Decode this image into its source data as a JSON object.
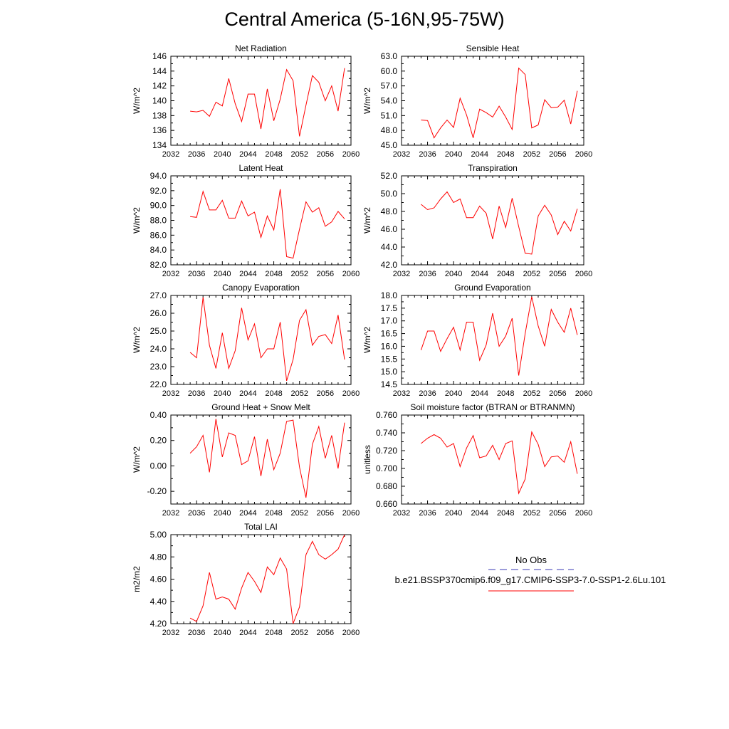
{
  "page": {
    "title": "Central America (5-16N,95-75W)"
  },
  "legend": {
    "obs_label": "No Obs",
    "run_label": "b.e21.BSSP370cmip6.f09_g17.CMIP6-SSP3-7.0-SSP1-2.6Lu.101",
    "colors": {
      "obs": "#3a3ab4",
      "run": "#ff0000"
    }
  },
  "chart_data": [
    {
      "type": "line",
      "title": "Net Radiation",
      "ylabel": "W/m^2",
      "xlim": [
        2032,
        2060
      ],
      "ylim": [
        134,
        146
      ],
      "xticks": [
        "2032",
        "2036",
        "2040",
        "2044",
        "2048",
        "2052",
        "2056",
        "2060"
      ],
      "yticks": [
        "134",
        "136",
        "138",
        "140",
        "142",
        "144",
        "146"
      ],
      "x": [
        2035,
        2036,
        2037,
        2038,
        2039,
        2040,
        2041,
        2042,
        2043,
        2044,
        2045,
        2046,
        2047,
        2048,
        2049,
        2050,
        2051,
        2052,
        2053,
        2054,
        2055,
        2056,
        2057,
        2058,
        2059
      ],
      "values": [
        138.6,
        138.5,
        138.7,
        137.9,
        139.8,
        139.3,
        143.0,
        139.6,
        137.2,
        140.9,
        140.9,
        136.2,
        141.6,
        137.3,
        140.2,
        144.2,
        142.7,
        135.2,
        139.4,
        143.4,
        142.5,
        140.0,
        142.0,
        138.6,
        144.4
      ],
      "series_color": "#ff0000",
      "grid": false
    },
    {
      "type": "line",
      "title": "Sensible Heat",
      "ylabel": "W/m^2",
      "xlim": [
        2032,
        2060
      ],
      "ylim": [
        45,
        63
      ],
      "xticks": [
        "2032",
        "2036",
        "2040",
        "2044",
        "2048",
        "2052",
        "2056",
        "2060"
      ],
      "yticks": [
        "45.0",
        "48.0",
        "51.0",
        "54.0",
        "57.0",
        "60.0",
        "63.0"
      ],
      "x": [
        2035,
        2036,
        2037,
        2038,
        2039,
        2040,
        2041,
        2042,
        2043,
        2044,
        2045,
        2046,
        2047,
        2048,
        2049,
        2050,
        2051,
        2052,
        2053,
        2054,
        2055,
        2056,
        2057,
        2058,
        2059
      ],
      "values": [
        50.1,
        50.0,
        46.5,
        48.5,
        50.1,
        48.6,
        54.5,
        51.1,
        46.5,
        52.3,
        51.6,
        50.7,
        52.9,
        50.7,
        48.2,
        60.6,
        59.3,
        48.5,
        49.1,
        54.2,
        52.6,
        52.7,
        54.1,
        49.3,
        56.0
      ],
      "series_color": "#ff0000",
      "grid": false
    },
    {
      "type": "line",
      "title": "Latent Heat",
      "ylabel": "W/m^2",
      "xlim": [
        2032,
        2060
      ],
      "ylim": [
        82,
        94
      ],
      "xticks": [
        "2032",
        "2036",
        "2040",
        "2044",
        "2048",
        "2052",
        "2056",
        "2060"
      ],
      "yticks": [
        "82.0",
        "84.0",
        "86.0",
        "88.0",
        "90.0",
        "92.0",
        "94.0"
      ],
      "x": [
        2035,
        2036,
        2037,
        2038,
        2039,
        2040,
        2041,
        2042,
        2043,
        2044,
        2045,
        2046,
        2047,
        2048,
        2049,
        2050,
        2051,
        2052,
        2053,
        2054,
        2055,
        2056,
        2057,
        2058,
        2059
      ],
      "values": [
        88.5,
        88.4,
        91.9,
        89.4,
        89.4,
        90.7,
        88.3,
        88.3,
        90.6,
        88.6,
        89.1,
        85.7,
        88.6,
        86.7,
        92.2,
        83.1,
        82.9,
        86.8,
        90.5,
        89.1,
        89.7,
        87.2,
        87.8,
        89.2,
        88.2
      ],
      "series_color": "#ff0000",
      "grid": false
    },
    {
      "type": "line",
      "title": "Transpiration",
      "ylabel": "W/m^2",
      "xlim": [
        2032,
        2060
      ],
      "ylim": [
        42,
        52
      ],
      "xticks": [
        "2032",
        "2036",
        "2040",
        "2044",
        "2048",
        "2052",
        "2056",
        "2060"
      ],
      "yticks": [
        "42.0",
        "44.0",
        "46.0",
        "48.0",
        "50.0",
        "52.0"
      ],
      "x": [
        2035,
        2036,
        2037,
        2038,
        2039,
        2040,
        2041,
        2042,
        2043,
        2044,
        2045,
        2046,
        2047,
        2048,
        2049,
        2050,
        2051,
        2052,
        2053,
        2054,
        2055,
        2056,
        2057,
        2058,
        2059
      ],
      "values": [
        48.8,
        48.2,
        48.4,
        49.4,
        50.2,
        49.0,
        49.4,
        47.3,
        47.3,
        48.6,
        47.8,
        44.9,
        48.6,
        46.2,
        49.5,
        46.3,
        43.3,
        43.2,
        47.5,
        48.7,
        47.6,
        45.4,
        46.9,
        45.8,
        48.3
      ],
      "series_color": "#ff0000",
      "grid": false
    },
    {
      "type": "line",
      "title": "Canopy Evaporation",
      "ylabel": "W/m^2",
      "xlim": [
        2032,
        2060
      ],
      "ylim": [
        22,
        27
      ],
      "xticks": [
        "2032",
        "2036",
        "2040",
        "2044",
        "2048",
        "2052",
        "2056",
        "2060"
      ],
      "yticks": [
        "22.0",
        "23.0",
        "24.0",
        "25.0",
        "26.0",
        "27.0"
      ],
      "x": [
        2035,
        2036,
        2037,
        2038,
        2039,
        2040,
        2041,
        2042,
        2043,
        2044,
        2045,
        2046,
        2047,
        2048,
        2049,
        2050,
        2051,
        2052,
        2053,
        2054,
        2055,
        2056,
        2057,
        2058,
        2059
      ],
      "values": [
        23.8,
        23.5,
        26.9,
        24.2,
        22.9,
        24.9,
        22.9,
        23.9,
        26.3,
        24.5,
        25.4,
        23.5,
        24.0,
        24.0,
        25.5,
        22.2,
        23.4,
        25.6,
        26.2,
        24.2,
        24.7,
        24.8,
        24.3,
        25.9,
        23.4
      ],
      "series_color": "#ff0000",
      "grid": false
    },
    {
      "type": "line",
      "title": "Ground Evaporation",
      "ylabel": "W/m^2",
      "xlim": [
        2032,
        2060
      ],
      "ylim": [
        14.5,
        18.0
      ],
      "xticks": [
        "2032",
        "2036",
        "2040",
        "2044",
        "2048",
        "2052",
        "2056",
        "2060"
      ],
      "yticks": [
        "14.5",
        "15.0",
        "15.5",
        "16.0",
        "16.5",
        "17.0",
        "17.5",
        "18.0"
      ],
      "x": [
        2035,
        2036,
        2037,
        2038,
        2039,
        2040,
        2041,
        2042,
        2043,
        2044,
        2045,
        2046,
        2047,
        2048,
        2049,
        2050,
        2051,
        2052,
        2053,
        2054,
        2055,
        2056,
        2057,
        2058,
        2059
      ],
      "values": [
        15.85,
        16.6,
        16.6,
        15.8,
        16.3,
        16.75,
        15.85,
        16.95,
        16.95,
        15.45,
        16.05,
        17.3,
        16.0,
        16.4,
        17.1,
        14.85,
        16.5,
        17.95,
        16.8,
        16.0,
        17.45,
        16.95,
        16.55,
        17.5,
        16.45
      ],
      "series_color": "#ff0000",
      "grid": false
    },
    {
      "type": "line",
      "title": "Ground Heat + Snow Melt",
      "ylabel": "W/m^2",
      "xlim": [
        2032,
        2060
      ],
      "ylim": [
        -0.3,
        0.4
      ],
      "xticks": [
        "2032",
        "2036",
        "2040",
        "2044",
        "2048",
        "2052",
        "2056",
        "2060"
      ],
      "yticks": [
        "-0.20",
        "0.00",
        "0.20",
        "0.40"
      ],
      "ytick_values": [
        -0.2,
        0.0,
        0.2,
        0.4
      ],
      "x": [
        2035,
        2036,
        2037,
        2038,
        2039,
        2040,
        2041,
        2042,
        2043,
        2044,
        2045,
        2046,
        2047,
        2048,
        2049,
        2050,
        2051,
        2052,
        2053,
        2054,
        2055,
        2056,
        2057,
        2058,
        2059
      ],
      "values": [
        0.1,
        0.15,
        0.24,
        -0.05,
        0.37,
        0.07,
        0.26,
        0.24,
        0.01,
        0.04,
        0.23,
        -0.08,
        0.21,
        -0.03,
        0.1,
        0.35,
        0.36,
        -0.01,
        -0.25,
        0.17,
        0.31,
        0.06,
        0.24,
        -0.02,
        0.34
      ],
      "series_color": "#ff0000",
      "grid": false
    },
    {
      "type": "line",
      "title": "Soil moisture factor (BTRAN or BTRANMN)",
      "ylabel": "unitless",
      "xlim": [
        2032,
        2060
      ],
      "ylim": [
        0.66,
        0.76
      ],
      "xticks": [
        "2032",
        "2036",
        "2040",
        "2044",
        "2048",
        "2052",
        "2056",
        "2060"
      ],
      "yticks": [
        "0.660",
        "0.680",
        "0.700",
        "0.720",
        "0.740",
        "0.760"
      ],
      "x": [
        2035,
        2036,
        2037,
        2038,
        2039,
        2040,
        2041,
        2042,
        2043,
        2044,
        2045,
        2046,
        2047,
        2048,
        2049,
        2050,
        2051,
        2052,
        2053,
        2054,
        2055,
        2056,
        2057,
        2058,
        2059
      ],
      "values": [
        0.728,
        0.734,
        0.738,
        0.734,
        0.724,
        0.728,
        0.702,
        0.723,
        0.737,
        0.712,
        0.714,
        0.726,
        0.71,
        0.728,
        0.731,
        0.672,
        0.688,
        0.741,
        0.727,
        0.702,
        0.713,
        0.714,
        0.707,
        0.73,
        0.694
      ],
      "series_color": "#ff0000",
      "grid": false
    },
    {
      "type": "line",
      "title": "Total LAI",
      "ylabel": "m2/m2",
      "xlim": [
        2032,
        2060
      ],
      "ylim": [
        4.2,
        5.0
      ],
      "xticks": [
        "2032",
        "2036",
        "2040",
        "2044",
        "2048",
        "2052",
        "2056",
        "2060"
      ],
      "yticks": [
        "4.20",
        "4.40",
        "4.60",
        "4.80",
        "5.00"
      ],
      "x": [
        2035,
        2036,
        2037,
        2038,
        2039,
        2040,
        2041,
        2042,
        2043,
        2044,
        2045,
        2046,
        2047,
        2048,
        2049,
        2050,
        2051,
        2052,
        2053,
        2054,
        2055,
        2056,
        2057,
        2058,
        2059
      ],
      "values": [
        4.25,
        4.22,
        4.36,
        4.66,
        4.42,
        4.44,
        4.42,
        4.33,
        4.52,
        4.66,
        4.58,
        4.48,
        4.71,
        4.64,
        4.79,
        4.69,
        4.2,
        4.35,
        4.82,
        4.94,
        4.82,
        4.78,
        4.82,
        4.87,
        5.0
      ],
      "series_color": "#ff0000",
      "grid": false
    }
  ]
}
